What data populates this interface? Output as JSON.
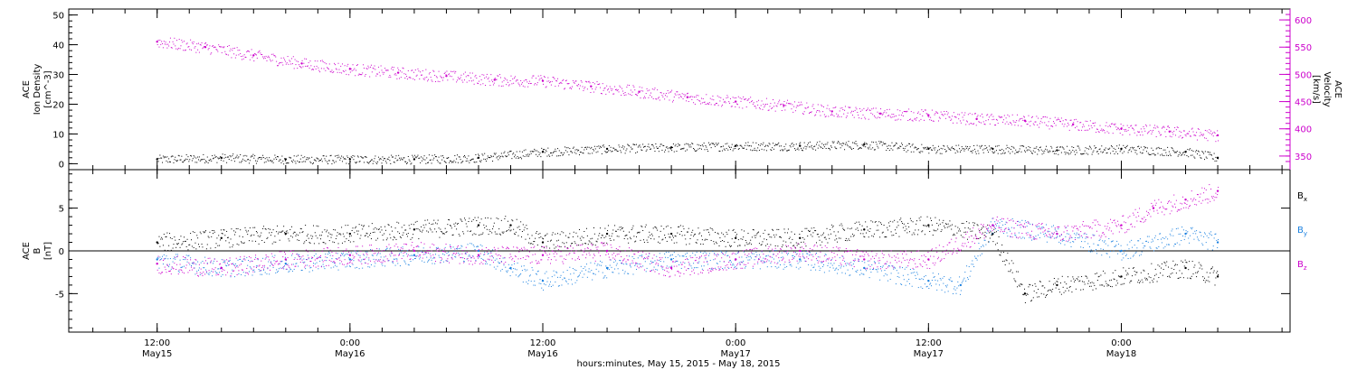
{
  "chart_data": [
    {
      "type": "scatter",
      "panel": "plasma",
      "left_ylabel_lines": [
        "ACE",
        "Ion Density",
        "[cm^-3]"
      ],
      "right_ylabel_lines": [
        "ACE",
        "Velocity",
        "[km/s]"
      ],
      "left_ylim": [
        -2,
        52
      ],
      "left_yticks": [
        0,
        10,
        20,
        30,
        40,
        50
      ],
      "left_yticklabels": [
        "0",
        "10",
        "20",
        "30",
        "40",
        "50"
      ],
      "right_ylim": [
        325,
        620
      ],
      "right_yticks": [
        350,
        400,
        450,
        500,
        550,
        600
      ],
      "right_yticklabels": [
        "350",
        "400",
        "450",
        "500",
        "550",
        "600"
      ],
      "series": [
        {
          "color": "#000000",
          "axis": "left",
          "x_hours": [
            0,
            4,
            8,
            12,
            16,
            20,
            24,
            28,
            32,
            36,
            40,
            44,
            48,
            52,
            56,
            60,
            64,
            66
          ],
          "values": [
            1.5,
            2,
            1.5,
            1.5,
            1.5,
            2,
            4,
            5,
            5.5,
            6,
            6,
            6.5,
            5,
            5,
            4.5,
            5,
            4,
            2
          ]
        },
        {
          "color": "#cc00cc",
          "axis": "right",
          "x_hours": [
            0,
            3,
            6,
            9,
            12,
            15,
            18,
            21,
            24,
            27,
            30,
            33,
            36,
            39,
            42,
            45,
            48,
            51,
            54,
            57,
            60,
            63,
            66
          ],
          "values": [
            560,
            550,
            535,
            520,
            510,
            503,
            497,
            490,
            488,
            478,
            468,
            458,
            450,
            443,
            432,
            428,
            425,
            418,
            415,
            408,
            400,
            395,
            388
          ]
        }
      ]
    },
    {
      "type": "scatter",
      "panel": "magnetic-field",
      "ylabel_lines": [
        "ACE",
        "B",
        "[nT]"
      ],
      "ylim": [
        -9.5,
        9.5
      ],
      "yticks": [
        -5,
        0,
        5
      ],
      "yticklabels": [
        "-5",
        "0",
        "5"
      ],
      "legend": [
        {
          "label": "Bx",
          "base": "B",
          "sub": "x",
          "color": "#000000"
        },
        {
          "label": "By",
          "base": "B",
          "sub": "y",
          "color": "#1a80e0"
        },
        {
          "label": "Bz",
          "base": "B",
          "sub": "z",
          "color": "#cc00cc"
        }
      ],
      "series": [
        {
          "name": "Bx",
          "color": "#000000",
          "x_hours": [
            0,
            4,
            8,
            12,
            16,
            20,
            22,
            24,
            28,
            32,
            36,
            40,
            44,
            48,
            52,
            54,
            56,
            60,
            64,
            66
          ],
          "values": [
            1,
            1.5,
            2,
            2,
            2.5,
            3,
            3,
            1,
            2,
            2,
            1.5,
            1.5,
            2.5,
            3,
            2,
            -5,
            -4,
            -3,
            -2,
            -3
          ]
        },
        {
          "name": "By",
          "color": "#1a80e0",
          "x_hours": [
            0,
            4,
            8,
            12,
            16,
            20,
            22,
            24,
            28,
            32,
            36,
            40,
            44,
            48,
            50,
            52,
            56,
            60,
            64,
            66
          ],
          "values": [
            -1,
            -2,
            -1.5,
            -1,
            -0.5,
            0,
            -2,
            -3.5,
            -2,
            -1,
            -1,
            -1,
            -2,
            -3.5,
            -4,
            3,
            2,
            0,
            2,
            1
          ]
        },
        {
          "name": "Bz",
          "color": "#cc00cc",
          "x_hours": [
            0,
            4,
            8,
            12,
            16,
            20,
            24,
            28,
            32,
            36,
            40,
            44,
            48,
            52,
            56,
            60,
            62,
            64,
            66
          ],
          "values": [
            -1.5,
            -2,
            -1,
            -0.5,
            0,
            -0.5,
            -0.5,
            0,
            -2,
            -1,
            0,
            -1,
            -1,
            3,
            2,
            3,
            5,
            6,
            7
          ]
        }
      ]
    }
  ],
  "x_axis": {
    "start_label_hours": 0,
    "range_hours": [
      -5.5,
      70.5
    ],
    "major_ticks": [
      {
        "hour": 0,
        "time": "12:00",
        "date": "May15"
      },
      {
        "hour": 12,
        "time": "0:00",
        "date": "May16"
      },
      {
        "hour": 24,
        "time": "12:00",
        "date": "May16"
      },
      {
        "hour": 36,
        "time": "0:00",
        "date": "May17"
      },
      {
        "hour": 48,
        "time": "12:00",
        "date": "May17"
      },
      {
        "hour": 60,
        "time": "0:00",
        "date": "May18"
      }
    ],
    "title": "hours:minutes, May 15, 2015 - May 18, 2015"
  }
}
